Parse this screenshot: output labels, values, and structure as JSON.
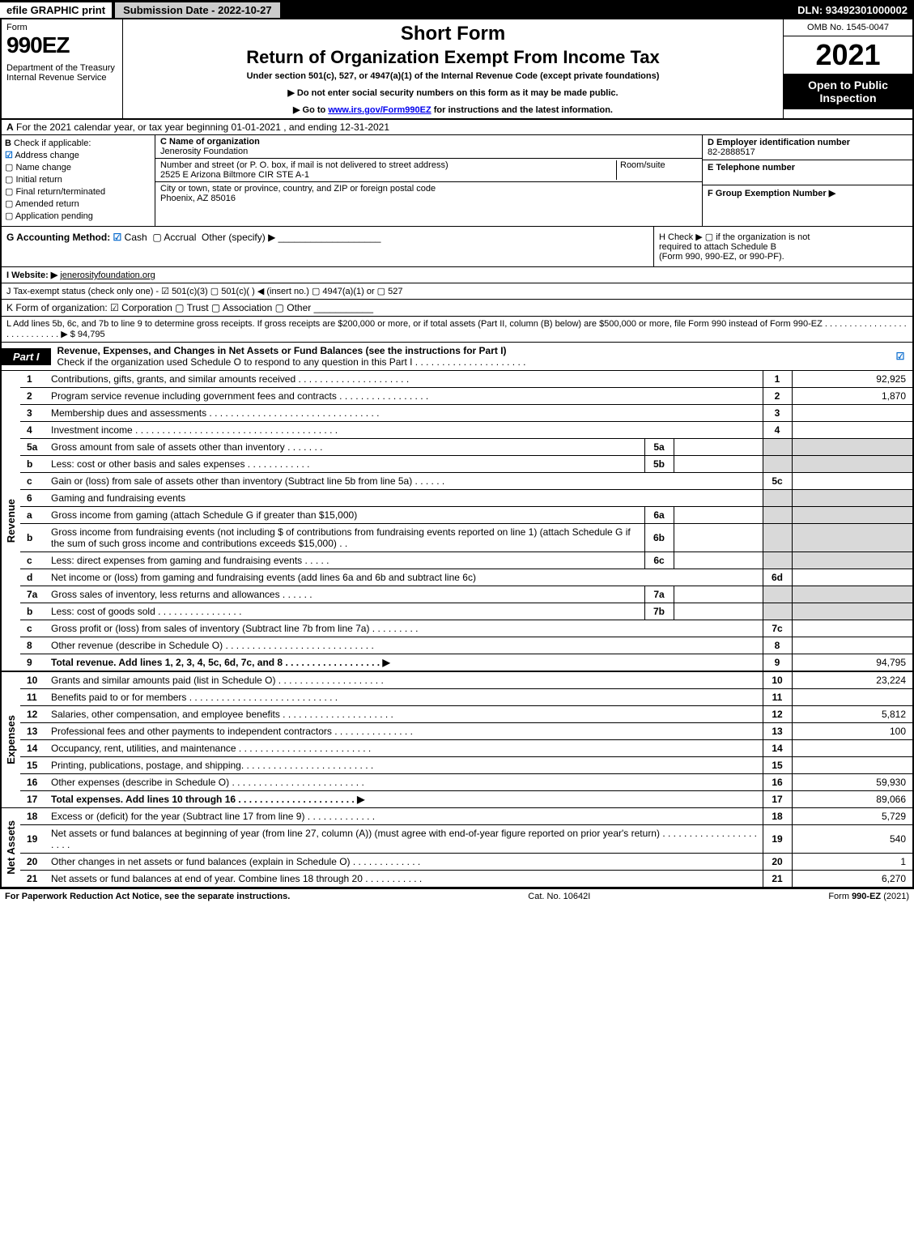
{
  "topbar": {
    "efile": "efile GRAPHIC print",
    "subdate": "Submission Date - 2022-10-27",
    "dln": "DLN: 93492301000002"
  },
  "header": {
    "form": "Form",
    "num": "990EZ",
    "dept": "Department of the Treasury\nInternal Revenue Service",
    "sf": "Short Form",
    "ret": "Return of Organization Exempt From Income Tax",
    "under": "Under section 501(c), 527, or 4947(a)(1) of the Internal Revenue Code (except private foundations)",
    "b1": "▶ Do not enter social security numbers on this form as it may be made public.",
    "b2_pre": "▶ Go to ",
    "b2_link": "www.irs.gov/Form990EZ",
    "b2_post": " for instructions and the latest information.",
    "omb": "OMB No. 1545-0047",
    "year": "2021",
    "open": "Open to Public Inspection"
  },
  "rowA": {
    "label": "A",
    "text": "For the 2021 calendar year, or tax year beginning 01-01-2021 , and ending 12-31-2021"
  },
  "b": {
    "label": "B",
    "title": "Check if applicable:",
    "items": [
      "Address change",
      "Name change",
      "Initial return",
      "Final return/terminated",
      "Amended return",
      "Application pending"
    ],
    "checked_idx": 0
  },
  "c": {
    "name_label": "C Name of organization",
    "name": "Jenerosity Foundation",
    "addr_label": "Number and street (or P. O. box, if mail is not delivered to street address)",
    "room_label": "Room/suite",
    "addr": "2525 E Arizona Biltmore CIR STE A-1",
    "city_label": "City or town, state or province, country, and ZIP or foreign postal code",
    "city": "Phoenix, AZ  85016"
  },
  "d": {
    "ein_label": "D Employer identification number",
    "ein": "82-2888517",
    "tel_label": "E Telephone number",
    "tel": "",
    "f_label": "F Group Exemption Number  ▶"
  },
  "g": {
    "label": "G Accounting Method:",
    "cash": "Cash",
    "accrual": "Accrual",
    "other": "Other (specify) ▶"
  },
  "h": {
    "line1": "H  Check ▶  ▢  if the organization is not",
    "line2": "required to attach Schedule B",
    "line3": "(Form 990, 990-EZ, or 990-PF)."
  },
  "i": {
    "label": "I Website: ▶",
    "val": "jenerosityfoundation.org"
  },
  "j": {
    "text": "J Tax-exempt status (check only one) - ☑ 501(c)(3) ▢ 501(c)(  ) ◀ (insert no.) ▢ 4947(a)(1) or ▢ 527"
  },
  "k": {
    "text": "K Form of organization:  ☑ Corporation  ▢ Trust  ▢ Association  ▢ Other"
  },
  "l": {
    "text": "L Add lines 5b, 6c, and 7b to line 9 to determine gross receipts. If gross receipts are $200,000 or more, or if total assets (Part II, column (B) below) are $500,000 or more, file Form 990 instead of Form 990-EZ  . . . . . . . . . . . . . . . . . . . . . . . . . . . .  ▶ $ 94,795"
  },
  "part1": {
    "tab": "Part I",
    "title": "Revenue, Expenses, and Changes in Net Assets or Fund Balances (see the instructions for Part I)",
    "sub": "Check if the organization used Schedule O to respond to any question in this Part I . . . . . . . . . . . . . . . . . . . . ."
  },
  "sections": {
    "revenue": "Revenue",
    "expenses": "Expenses",
    "netassets": "Net Assets"
  },
  "lines": [
    {
      "n": "1",
      "d": "Contributions, gifts, grants, and similar amounts received . . . . . . . . . . . . . . . . . . . . .",
      "ln": "1",
      "amt": "92,925"
    },
    {
      "n": "2",
      "d": "Program service revenue including government fees and contracts . . . . . . . . . . . . . . . . .",
      "ln": "2",
      "amt": "1,870"
    },
    {
      "n": "3",
      "d": "Membership dues and assessments . . . . . . . . . . . . . . . . . . . . . . . . . . . . . . . .",
      "ln": "3",
      "amt": ""
    },
    {
      "n": "4",
      "d": "Investment income . . . . . . . . . . . . . . . . . . . . . . . . . . . . . . . . . . . . . .",
      "ln": "4",
      "amt": ""
    },
    {
      "n": "5a",
      "d": "Gross amount from sale of assets other than inventory . . . . . . .",
      "sub": "5a",
      "grey": true
    },
    {
      "n": "b",
      "d": "Less: cost or other basis and sales expenses . . . . . . . . . . . .",
      "sub": "5b",
      "grey": true
    },
    {
      "n": "c",
      "d": "Gain or (loss) from sale of assets other than inventory (Subtract line 5b from line 5a) . . . . . .",
      "ln": "5c",
      "amt": ""
    },
    {
      "n": "6",
      "d": "Gaming and fundraising events",
      "noline": true,
      "grey": true
    },
    {
      "n": "a",
      "d": "Gross income from gaming (attach Schedule G if greater than $15,000)",
      "sub": "6a",
      "grey": true
    },
    {
      "n": "b",
      "d": "Gross income from fundraising events (not including $                            of contributions from fundraising events reported on line 1) (attach Schedule G if the sum of such gross income and contributions exceeds $15,000)  . .",
      "sub": "6b",
      "grey": true
    },
    {
      "n": "c",
      "d": "Less: direct expenses from gaming and fundraising events  . . . . .",
      "sub": "6c",
      "grey": true
    },
    {
      "n": "d",
      "d": "Net income or (loss) from gaming and fundraising events (add lines 6a and 6b and subtract line 6c)",
      "ln": "6d",
      "amt": ""
    },
    {
      "n": "7a",
      "d": "Gross sales of inventory, less returns and allowances . . . . . .",
      "sub": "7a",
      "grey": true
    },
    {
      "n": "b",
      "d": "Less: cost of goods sold        . . . . . . . . . . . . . . . .",
      "sub": "7b",
      "grey": true
    },
    {
      "n": "c",
      "d": "Gross profit or (loss) from sales of inventory (Subtract line 7b from line 7a) . . . . . . . . .",
      "ln": "7c",
      "amt": ""
    },
    {
      "n": "8",
      "d": "Other revenue (describe in Schedule O) . . . . . . . . . . . . . . . . . . . . . . . . . . . .",
      "ln": "8",
      "amt": ""
    },
    {
      "n": "9",
      "d": "Total revenue. Add lines 1, 2, 3, 4, 5c, 6d, 7c, and 8  . . . . . . . . . . . . . . . . . .   ▶",
      "ln": "9",
      "amt": "94,795",
      "bold": true
    }
  ],
  "expenses": [
    {
      "n": "10",
      "d": "Grants and similar amounts paid (list in Schedule O) . . . . . . . . . . . . . . . . . . . .",
      "ln": "10",
      "amt": "23,224"
    },
    {
      "n": "11",
      "d": "Benefits paid to or for members      . . . . . . . . . . . . . . . . . . . . . . . . . . . .",
      "ln": "11",
      "amt": ""
    },
    {
      "n": "12",
      "d": "Salaries, other compensation, and employee benefits . . . . . . . . . . . . . . . . . . . . .",
      "ln": "12",
      "amt": "5,812"
    },
    {
      "n": "13",
      "d": "Professional fees and other payments to independent contractors . . . . . . . . . . . . . . .",
      "ln": "13",
      "amt": "100"
    },
    {
      "n": "14",
      "d": "Occupancy, rent, utilities, and maintenance . . . . . . . . . . . . . . . . . . . . . . . . .",
      "ln": "14",
      "amt": ""
    },
    {
      "n": "15",
      "d": "Printing, publications, postage, and shipping. . . . . . . . . . . . . . . . . . . . . . . . .",
      "ln": "15",
      "amt": ""
    },
    {
      "n": "16",
      "d": "Other expenses (describe in Schedule O)     . . . . . . . . . . . . . . . . . . . . . . . . .",
      "ln": "16",
      "amt": "59,930"
    },
    {
      "n": "17",
      "d": "Total expenses. Add lines 10 through 16      . . . . . . . . . . . . . . . . . . . . . .  ▶",
      "ln": "17",
      "amt": "89,066",
      "bold": true
    }
  ],
  "net": [
    {
      "n": "18",
      "d": "Excess or (deficit) for the year (Subtract line 17 from line 9)        . . . . . . . . . . . . .",
      "ln": "18",
      "amt": "5,729"
    },
    {
      "n": "19",
      "d": "Net assets or fund balances at beginning of year (from line 27, column (A)) (must agree with end-of-year figure reported on prior year's return) . . . . . . . . . . . . . . . . . . . . . .",
      "ln": "19",
      "amt": "540"
    },
    {
      "n": "20",
      "d": "Other changes in net assets or fund balances (explain in Schedule O) . . . . . . . . . . . . .",
      "ln": "20",
      "amt": "1"
    },
    {
      "n": "21",
      "d": "Net assets or fund balances at end of year. Combine lines 18 through 20 . . . . . . . . . . .",
      "ln": "21",
      "amt": "6,270"
    }
  ],
  "footer": {
    "l": "For Paperwork Reduction Act Notice, see the separate instructions.",
    "c": "Cat. No. 10642I",
    "r": "Form 990-EZ (2021)"
  }
}
